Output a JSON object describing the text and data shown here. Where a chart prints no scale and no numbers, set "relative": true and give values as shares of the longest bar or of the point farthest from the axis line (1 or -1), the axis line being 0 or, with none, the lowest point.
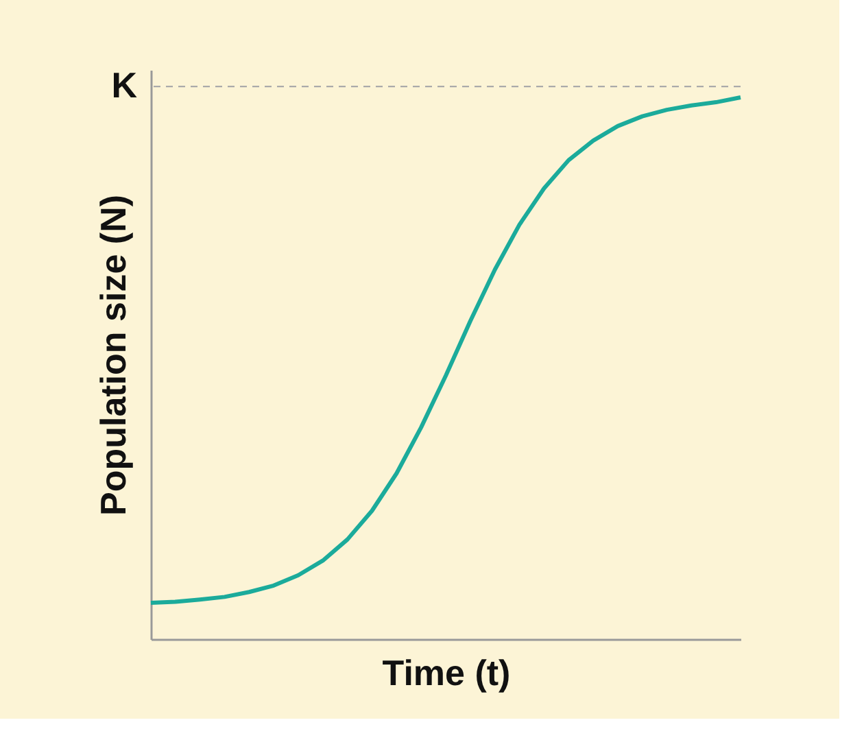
{
  "chart_data": {
    "type": "line",
    "relative": true,
    "xlabel": "Time (t)",
    "ylabel": "Population size (N)",
    "categories": [
      null,
      null,
      null,
      null,
      null,
      null,
      null,
      null,
      null,
      null,
      null,
      null,
      null,
      null,
      null,
      null,
      null,
      null,
      null,
      null,
      null,
      null,
      null,
      null,
      null
    ],
    "series": [
      {
        "color": "#1bab9b",
        "values": [
          0.067,
          0.069,
          0.073,
          0.078,
          0.087,
          0.099,
          0.118,
          0.145,
          0.184,
          0.237,
          0.306,
          0.391,
          0.486,
          0.587,
          0.682,
          0.765,
          0.832,
          0.884,
          0.92,
          0.947,
          0.965,
          0.977,
          0.985,
          0.991,
          1.0
        ]
      }
    ],
    "ref_lines": [
      {
        "axis": "y",
        "value": 1.02,
        "label": "K",
        "color": "#aaaaaa",
        "line_style": "dashed"
      }
    ],
    "grid": false,
    "marker": "none",
    "line_style": "solid",
    "tick_labels": false
  }
}
